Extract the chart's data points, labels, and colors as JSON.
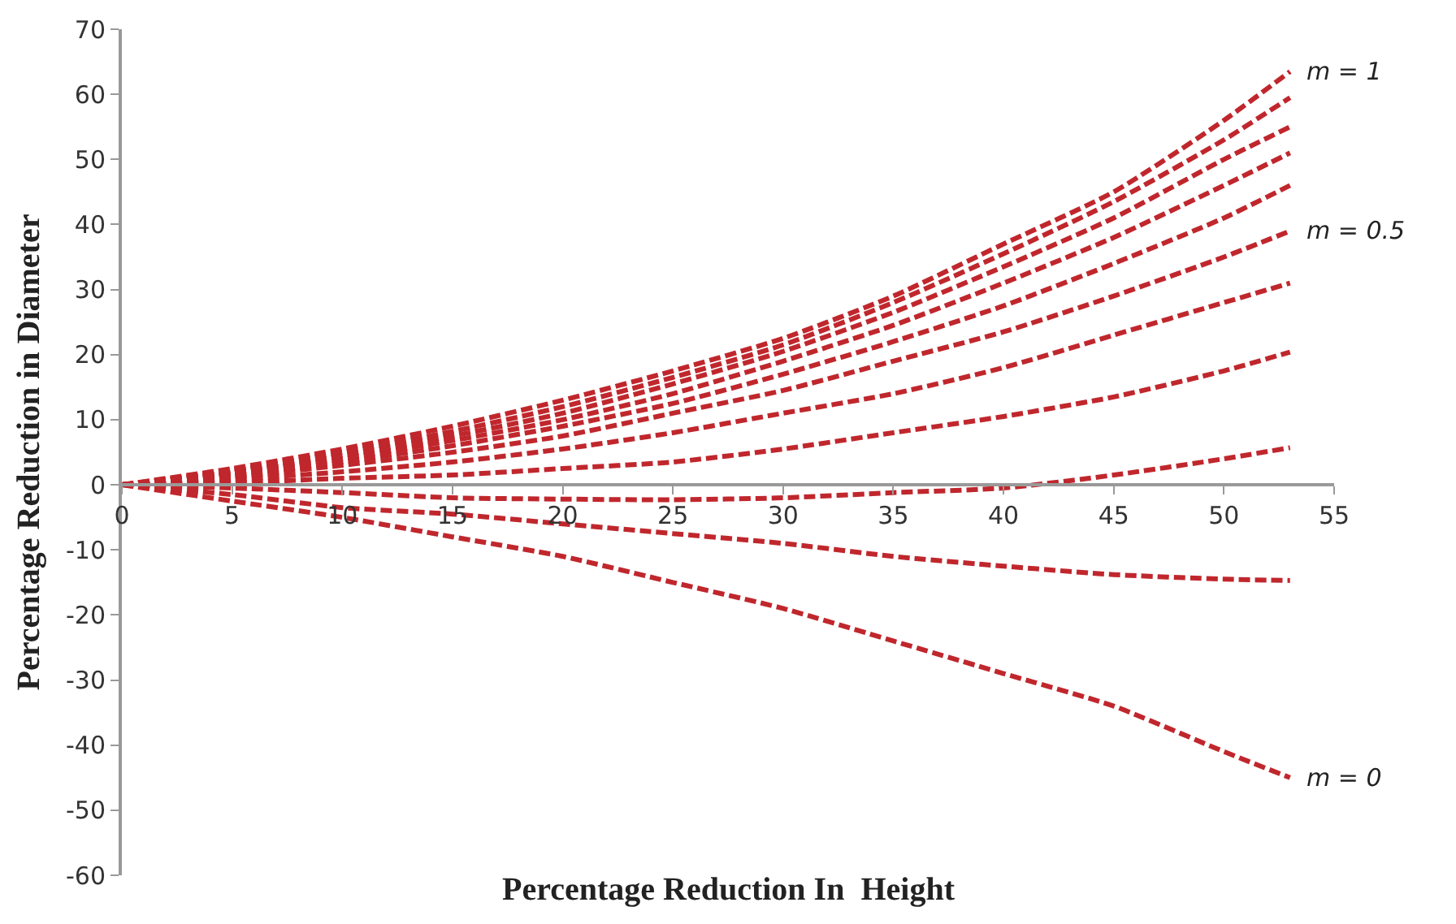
{
  "chart_data": {
    "type": "line",
    "xlabel": "Percentage Reduction In  Height",
    "ylabel": "Percentage Reduction in Diameter",
    "x": [
      0,
      5,
      10,
      15,
      20,
      25,
      30,
      35,
      40,
      45,
      50,
      53
    ],
    "series": [
      {
        "name": "m = 0",
        "color": "#c0272d",
        "values": [
          0,
          -2.5,
          -5,
          -8,
          -11,
          -15,
          -19,
          -24,
          -29,
          -34,
          -41,
          -45
        ]
      },
      {
        "color": "#c0272d",
        "values": [
          0,
          -1.5,
          -3.5,
          -4.5,
          -6,
          -7.5,
          -9,
          -11,
          -12.5,
          -13.8,
          -14.5,
          -14.7
        ]
      },
      {
        "color": "#c0272d",
        "values": [
          0,
          -0.5,
          -1.2,
          -2,
          -2.2,
          -2.3,
          -2,
          -1.2,
          -0.5,
          1.5,
          4,
          5.7
        ]
      },
      {
        "color": "#c0272d",
        "values": [
          0,
          0.3,
          1,
          1.5,
          2.5,
          3.5,
          5.5,
          8,
          10.5,
          13.5,
          17.5,
          20.4
        ]
      },
      {
        "color": "#c0272d",
        "values": [
          0,
          0.8,
          2,
          3.5,
          5.5,
          8,
          11,
          14,
          18,
          23,
          28,
          31
        ]
      },
      {
        "name": "m = 0.5",
        "color": "#c0272d",
        "values": [
          0,
          1.2,
          3,
          5,
          7.5,
          11,
          14.5,
          19,
          23.5,
          29,
          35,
          39
        ]
      },
      {
        "color": "#c0272d",
        "values": [
          0,
          1.5,
          3.5,
          6,
          9,
          12.5,
          17,
          22,
          27.5,
          34,
          41,
          46
        ]
      },
      {
        "color": "#c0272d",
        "values": [
          0,
          1.8,
          4,
          6.8,
          10,
          14,
          19,
          24.5,
          31,
          38,
          46,
          51
        ]
      },
      {
        "color": "#c0272d",
        "values": [
          0,
          2,
          4.5,
          7.5,
          11,
          15.5,
          20.5,
          26.5,
          33.5,
          41,
          50,
          55
        ]
      },
      {
        "color": "#c0272d",
        "values": [
          0,
          2.2,
          5,
          8.2,
          12,
          16.5,
          21.5,
          28,
          35.5,
          43.5,
          53,
          59.5
        ]
      },
      {
        "name": "m = 1",
        "color": "#c0272d",
        "values": [
          0,
          2.5,
          5.5,
          9,
          13,
          17.5,
          22.5,
          29,
          37,
          45,
          56,
          63.5
        ]
      }
    ],
    "xlim": [
      0,
      55
    ],
    "xticks": [
      0,
      5,
      10,
      15,
      20,
      25,
      30,
      35,
      40,
      45,
      50,
      55
    ],
    "ylim": [
      -60,
      70
    ],
    "yticks": [
      -60,
      -50,
      -40,
      -30,
      -20,
      -10,
      0,
      10,
      20,
      30,
      40,
      50,
      60,
      70
    ],
    "grid": false,
    "legend": false,
    "marker": "none",
    "line_style": "dashed"
  }
}
